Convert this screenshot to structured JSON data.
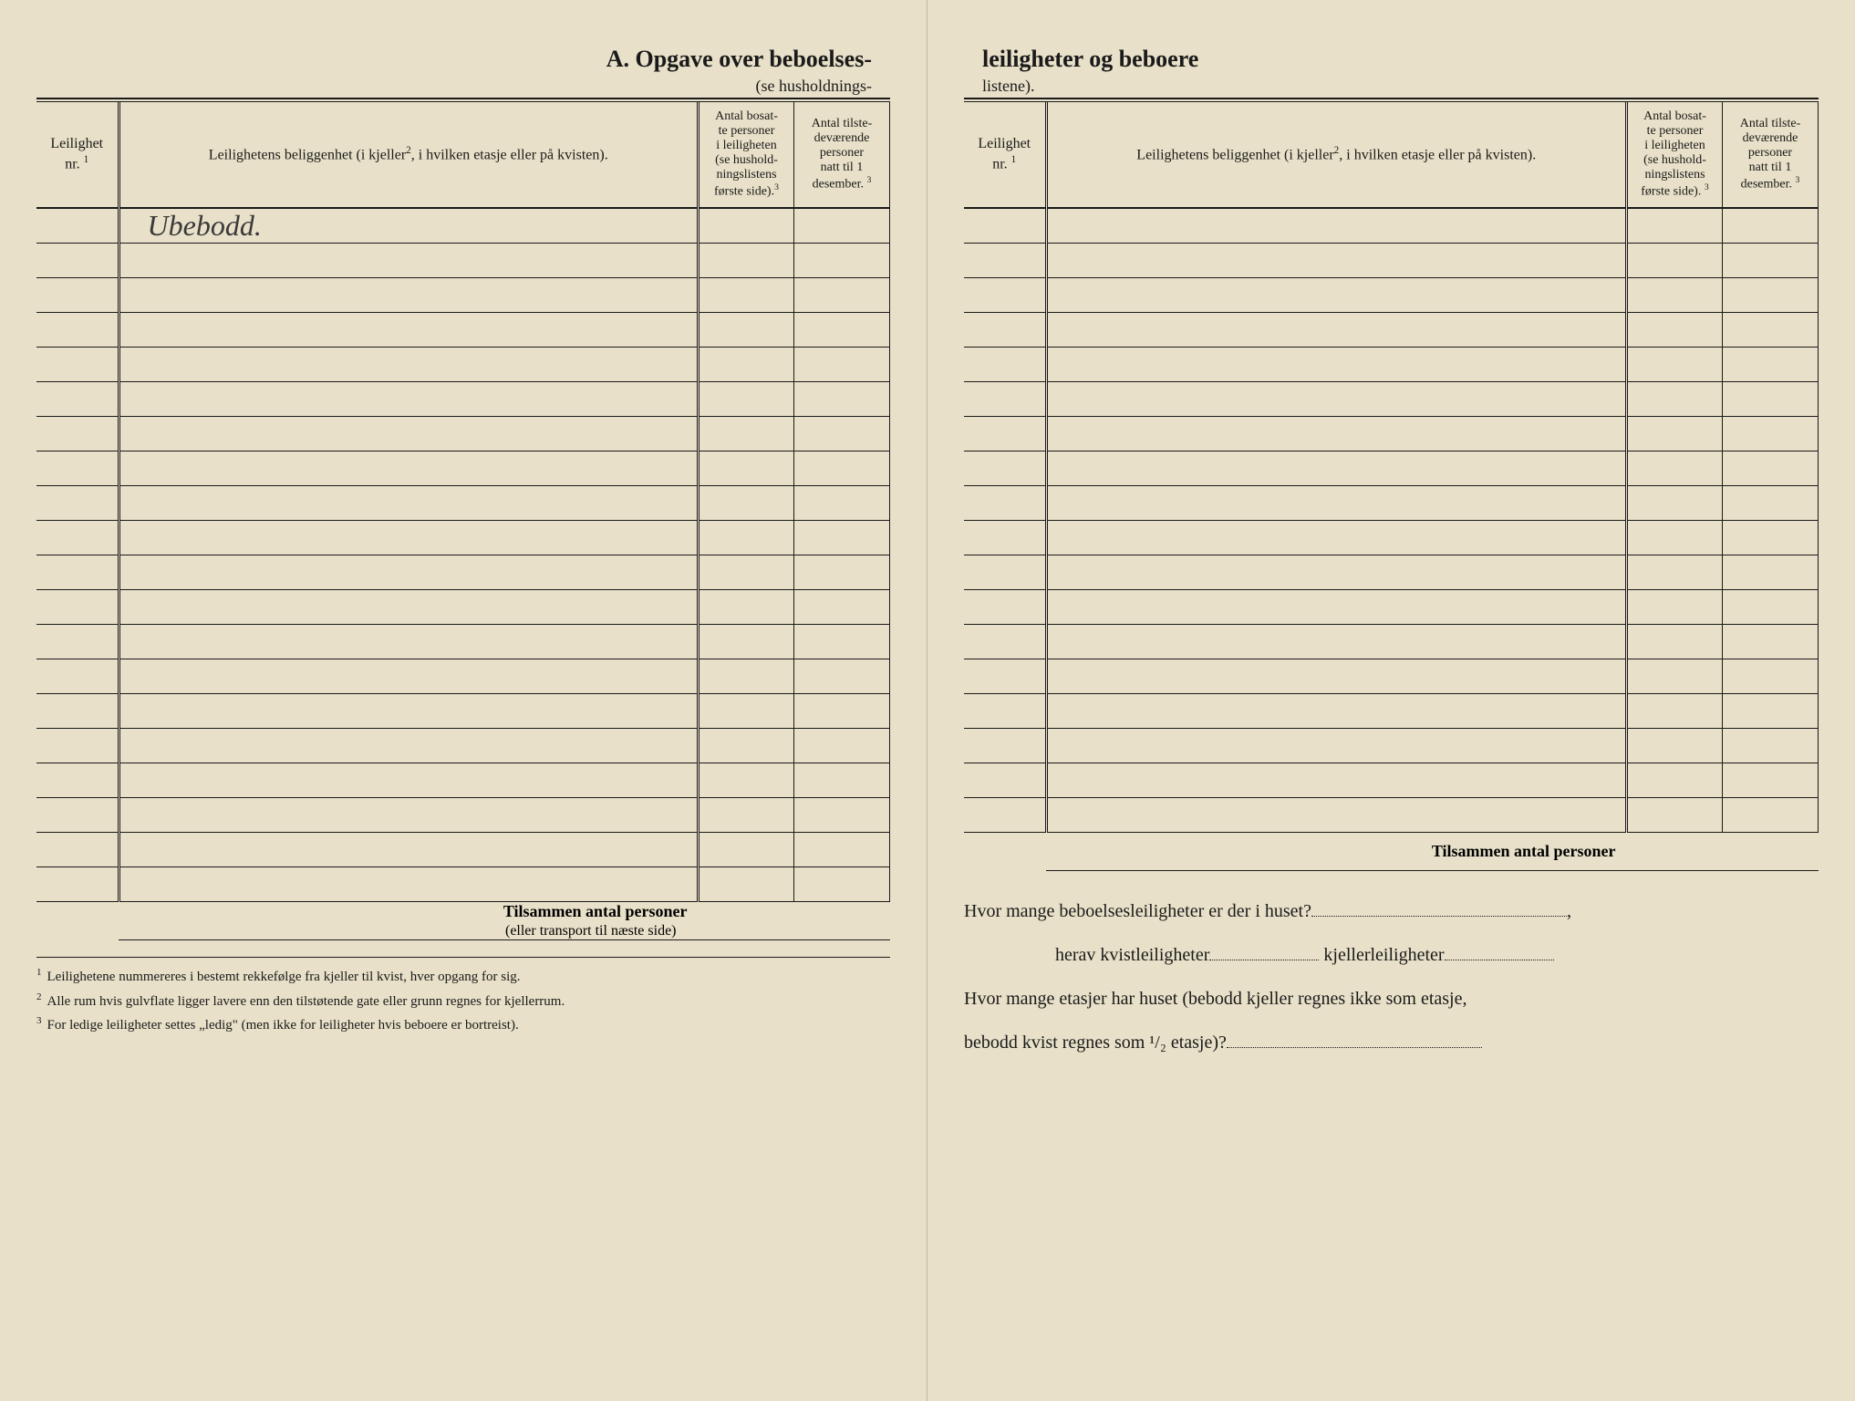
{
  "title": {
    "left": "A.  Opgave over beboelses-",
    "right": "leiligheter og beboere",
    "sub_left": "(se husholdnings-",
    "sub_right": "listene)."
  },
  "headers": {
    "nr": "Leilighet nr.",
    "nr_sup": "1",
    "location": "Leilighetens beliggenhet (i kjeller",
    "location_sup": "2",
    "location_after": ", i hvilken etasje eller på kvisten).",
    "col3_l1": "Antal bosat-",
    "col3_l2": "te personer",
    "col3_l3": "i leiligheten",
    "col3_l4": "(se hushold-",
    "col3_l5": "ningslistens",
    "col3_l6": "første side).",
    "col3_sup": "3",
    "col4_l1": "Antal tilste-",
    "col4_l2": "deværende",
    "col4_l3": "personer",
    "col4_l4": "natt til 1",
    "col4_l5": "desember.",
    "col4_sup": "3"
  },
  "handwritten_entry": "Ubebodd.",
  "left_row_count": 20,
  "right_row_count": 18,
  "totals": {
    "label": "Tilsammen antal personer",
    "sub": "(eller transport til næste side)"
  },
  "footnotes": {
    "f1": "Leilighetene nummereres i bestemt rekkefølge fra kjeller til kvist, hver opgang for sig.",
    "f2": "Alle rum hvis gulvflate ligger lavere enn den tilstøtende gate eller grunn regnes for kjellerrum.",
    "f3": "For ledige leiligheter settes „ledig\" (men ikke for leiligheter hvis beboere er bortreist)."
  },
  "questions": {
    "q1": "Hvor mange beboelsesleiligheter er der i huset?",
    "q2_a": "herav kvistleiligheter",
    "q2_b": "kjellerleiligheter",
    "q3": "Hvor mange etasjer har huset (bebodd kjeller regnes ikke som etasje,",
    "q4": "bebodd kvist regnes som ¹/₂ etasje)?"
  },
  "colors": {
    "paper": "#e8e0c8",
    "ink": "#1a1a1a",
    "handwriting": "#3a3a3a"
  }
}
